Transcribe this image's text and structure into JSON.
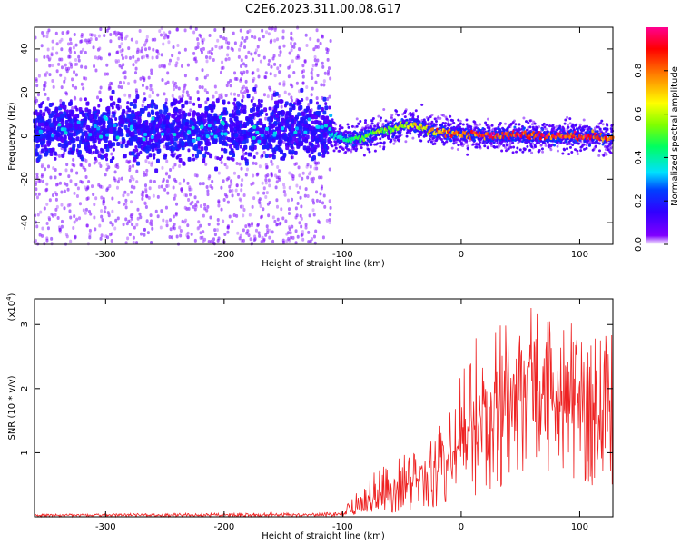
{
  "title": "C2E6.2023.311.00.08.G17",
  "chart_data": [
    {
      "type": "heatmap",
      "xlabel": "Height of straight line (km)",
      "ylabel": "Frequency (Hz)",
      "xlim": [
        -360,
        128
      ],
      "ylim": [
        -50,
        50
      ],
      "xticks": [
        -300,
        -200,
        -100,
        0,
        100
      ],
      "yticks": [
        -40,
        -20,
        0,
        20,
        40
      ],
      "colorbar": {
        "label": "Normalized spectral amplitude",
        "range": [
          0,
          1
        ],
        "ticks": [
          0.0,
          0.2,
          0.4,
          0.6,
          0.8
        ],
        "colormap": "rainbow"
      },
      "noise_region": {
        "x_range": [
          -360,
          -110
        ],
        "center_freq": 3,
        "spread_hz": 50,
        "typical_amplitude": 0.15
      },
      "signal_ridge": [
        {
          "x": -110,
          "freq": 1,
          "amplitude": 0.35
        },
        {
          "x": -95,
          "freq": -2,
          "amplitude": 0.45
        },
        {
          "x": -80,
          "freq": 0,
          "amplitude": 0.55
        },
        {
          "x": -70,
          "freq": 2,
          "amplitude": 0.6
        },
        {
          "x": -60,
          "freq": 3,
          "amplitude": 0.6
        },
        {
          "x": -50,
          "freq": 5,
          "amplitude": 0.65
        },
        {
          "x": -40,
          "freq": 5,
          "amplitude": 0.7
        },
        {
          "x": -30,
          "freq": 3,
          "amplitude": 0.75
        },
        {
          "x": -20,
          "freq": 2,
          "amplitude": 0.85
        },
        {
          "x": 0,
          "freq": 1,
          "amplitude": 0.9
        },
        {
          "x": 20,
          "freq": 0,
          "amplitude": 0.95
        },
        {
          "x": 50,
          "freq": 0,
          "amplitude": 0.95
        },
        {
          "x": 80,
          "freq": 0,
          "amplitude": 0.95
        },
        {
          "x": 110,
          "freq": 0,
          "amplitude": 0.95
        },
        {
          "x": 128,
          "freq": -1,
          "amplitude": 0.9
        }
      ]
    },
    {
      "type": "line",
      "xlabel": "Height of straight line (km)",
      "ylabel": "SNR (10 * v/v)",
      "y_multiplier": "(x10",
      "y_multiplier_exp": "4",
      "y_multiplier_close": ")",
      "xlim": [
        -360,
        128
      ],
      "ylim": [
        0,
        3.4
      ],
      "xticks": [
        -300,
        -200,
        -100,
        0,
        100
      ],
      "yticks": [
        1,
        2,
        3
      ],
      "color": "#ee2222",
      "series": [
        {
          "x": [
            -360,
            -300,
            -200,
            -150,
            -110,
            -100,
            -90,
            -80,
            -70,
            -60,
            -50,
            -40,
            -30,
            -20,
            -10,
            0,
            10,
            20,
            30,
            40,
            50,
            60,
            70,
            80,
            90,
            100,
            110,
            120,
            128
          ],
          "y": [
            0.02,
            0.03,
            0.03,
            0.03,
            0.04,
            0.05,
            0.1,
            0.2,
            0.3,
            0.4,
            0.45,
            0.55,
            0.6,
            0.7,
            0.9,
            1.2,
            1.4,
            1.6,
            1.7,
            1.8,
            1.9,
            2.0,
            1.9,
            1.8,
            1.8,
            1.9,
            1.8,
            1.7,
            1.6
          ],
          "envelope_max": [
            0.04,
            0.05,
            0.06,
            0.06,
            0.07,
            0.12,
            0.35,
            0.5,
            0.8,
            0.85,
            0.95,
            1.1,
            1.2,
            1.4,
            1.6,
            2.4,
            2.8,
            2.8,
            3.0,
            3.0,
            3.0,
            3.35,
            3.2,
            3.0,
            3.1,
            3.0,
            2.9,
            3.2,
            3.2
          ],
          "envelope_min": [
            0.0,
            0.0,
            0.0,
            0.0,
            0.0,
            0.0,
            0.02,
            0.02,
            0.05,
            0.05,
            0.1,
            0.1,
            0.1,
            0.15,
            0.2,
            0.4,
            0.3,
            0.4,
            0.4,
            0.5,
            0.5,
            0.6,
            0.5,
            0.6,
            0.6,
            0.5,
            0.5,
            0.3,
            0.5
          ]
        }
      ]
    }
  ]
}
